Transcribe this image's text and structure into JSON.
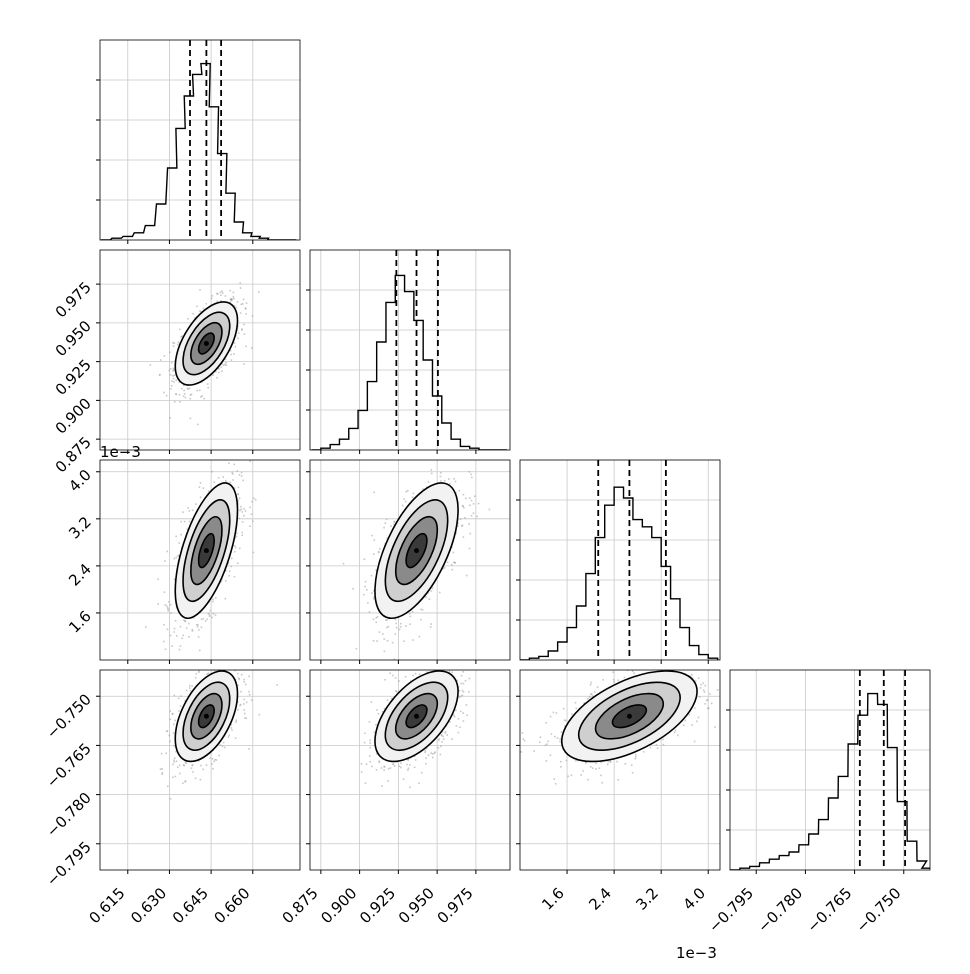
{
  "chart_data": {
    "type": "corner",
    "grid": true,
    "parameters": [
      {
        "index": 0,
        "range": [
          0.605,
          0.677
        ],
        "ticks": [
          "0.615",
          "0.630",
          "0.645",
          "0.660"
        ],
        "tick_values": [
          0.615,
          0.63,
          0.645,
          0.66
        ],
        "quantiles": [
          0.6374,
          0.6433,
          0.6486
        ],
        "offset_label": "",
        "hist_x": [
          0.607,
          0.611,
          0.615,
          0.619,
          0.623,
          0.627,
          0.631,
          0.634,
          0.637,
          0.64,
          0.643,
          0.646,
          0.649,
          0.652,
          0.655,
          0.658,
          0.661,
          0.664,
          0.667,
          0.67,
          0.674
        ],
        "hist_y": [
          0,
          0.01,
          0.02,
          0.04,
          0.08,
          0.2,
          0.4,
          0.62,
          0.8,
          0.92,
          0.98,
          0.74,
          0.48,
          0.26,
          0.1,
          0.04,
          0.02,
          0.01,
          0,
          0,
          0
        ]
      },
      {
        "index": 1,
        "range": [
          0.868,
          0.997
        ],
        "ticks": [
          "0.875",
          "0.900",
          "0.925",
          "0.950",
          "0.975"
        ],
        "tick_values": [
          0.875,
          0.9,
          0.925,
          0.95,
          0.975
        ],
        "quantiles": [
          0.9237,
          0.9367,
          0.9505
        ],
        "offset_label": "",
        "hist_x": [
          0.872,
          0.878,
          0.884,
          0.89,
          0.896,
          0.902,
          0.908,
          0.914,
          0.92,
          0.926,
          0.932,
          0.938,
          0.944,
          0.95,
          0.956,
          0.962,
          0.968,
          0.974,
          0.98,
          0.986,
          0.992
        ],
        "hist_y": [
          0,
          0.01,
          0.03,
          0.06,
          0.12,
          0.22,
          0.38,
          0.6,
          0.82,
          0.97,
          0.88,
          0.72,
          0.5,
          0.3,
          0.15,
          0.06,
          0.02,
          0.01,
          0,
          0,
          0
        ]
      },
      {
        "index": 2,
        "range": [
          0.0008,
          0.0042
        ],
        "ticks": [
          "1.6",
          "2.4",
          "3.2",
          "4.0"
        ],
        "tick_values": [
          0.0016,
          0.0024,
          0.0032,
          0.004
        ],
        "quantiles": [
          0.00213,
          0.00266,
          0.00328
        ],
        "offset_label": "1e−3",
        "hist_x": [
          0.00088,
          0.00104,
          0.0012,
          0.00136,
          0.00152,
          0.00168,
          0.00184,
          0.002,
          0.00216,
          0.00232,
          0.00248,
          0.00264,
          0.0028,
          0.00296,
          0.00312,
          0.00328,
          0.00344,
          0.0036,
          0.00376,
          0.00392,
          0.00408
        ],
        "hist_y": [
          0,
          0.01,
          0.02,
          0.05,
          0.1,
          0.18,
          0.3,
          0.48,
          0.68,
          0.86,
          0.96,
          0.9,
          0.78,
          0.74,
          0.68,
          0.52,
          0.34,
          0.18,
          0.08,
          0.03,
          0.01
        ]
      },
      {
        "index": 3,
        "range": [
          -0.803,
          -0.742
        ],
        "ticks": [
          "−0.795",
          "−0.780",
          "−0.765",
          "−0.750"
        ],
        "tick_values": [
          -0.795,
          -0.78,
          -0.765,
          -0.75
        ],
        "quantiles": [
          -0.7634,
          -0.7561,
          -0.7496
        ],
        "offset_label": "",
        "hist_x": [
          -0.8015,
          -0.7985,
          -0.7955,
          -0.7925,
          -0.7895,
          -0.7865,
          -0.7835,
          -0.7805,
          -0.7775,
          -0.7745,
          -0.7715,
          -0.7685,
          -0.7655,
          -0.7625,
          -0.7595,
          -0.7565,
          -0.7535,
          -0.7505,
          -0.7475,
          -0.7445,
          -0.743
        ],
        "hist_y": [
          0,
          0.01,
          0.02,
          0.04,
          0.06,
          0.08,
          0.1,
          0.14,
          0.2,
          0.28,
          0.4,
          0.52,
          0.7,
          0.86,
          0.98,
          0.92,
          0.68,
          0.38,
          0.16,
          0.05,
          0.01
        ]
      }
    ],
    "correlations": [
      {
        "row": 1,
        "col": 0,
        "rho": 0.55
      },
      {
        "row": 2,
        "col": 0,
        "rho": 0.6
      },
      {
        "row": 2,
        "col": 1,
        "rho": 0.6
      },
      {
        "row": 3,
        "col": 0,
        "rho": 0.5
      },
      {
        "row": 3,
        "col": 1,
        "rho": 0.55
      },
      {
        "row": 3,
        "col": 2,
        "rho": 0.55
      }
    ],
    "contour_levels_sigma": [
      0.5,
      1.0,
      1.5,
      2.0
    ]
  }
}
